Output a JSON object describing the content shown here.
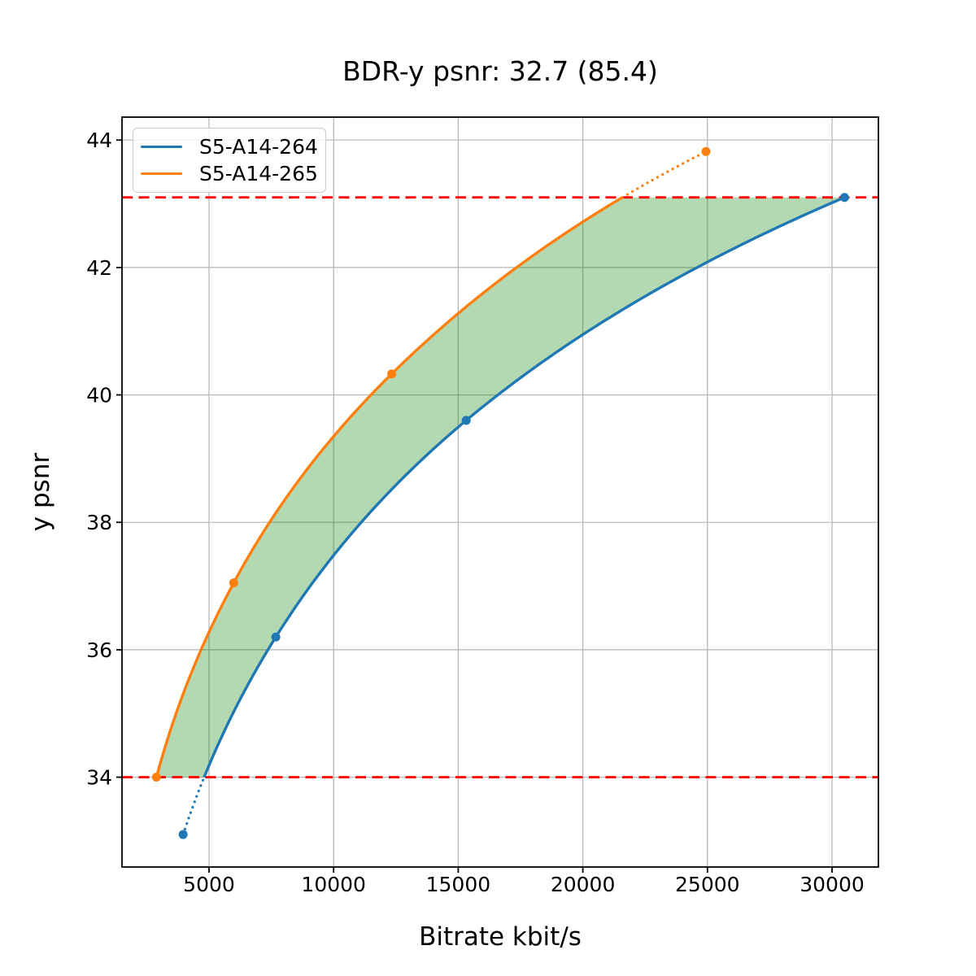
{
  "figure": {
    "background": "#ffffff"
  },
  "chart_data": {
    "type": "line",
    "title": "BDR-y psnr: 32.7 (85.4)",
    "xlabel": "Bitrate kbit/s",
    "ylabel": "y psnr",
    "xlim": [
      1508,
      31860
    ],
    "ylim": [
      32.59,
      44.36
    ],
    "xticks": [
      5000,
      10000,
      15000,
      20000,
      25000,
      30000
    ],
    "yticks": [
      34,
      36,
      38,
      40,
      42,
      44
    ],
    "grid": true,
    "grid_color": "#b4b4b4",
    "legend_position": "upper-left",
    "series": [
      {
        "name": "S5-A14-264",
        "color": "#1f77b4",
        "x": [
          3960,
          7680,
          15320,
          30500
        ],
        "y": [
          33.1,
          36.2,
          39.6,
          43.1
        ],
        "marker": "circle",
        "interpolation": "pchip-log-x"
      },
      {
        "name": "S5-A14-265",
        "color": "#ff7f0e",
        "x": [
          2890,
          5990,
          12330,
          24940
        ],
        "y": [
          34.0,
          37.05,
          40.33,
          43.82
        ],
        "marker": "circle",
        "interpolation": "pchip-log-x"
      }
    ],
    "hlines": [
      {
        "y": 34.0,
        "color": "#ff0000",
        "style": "dashed"
      },
      {
        "y": 43.1,
        "color": "#ff0000",
        "style": "dashed"
      }
    ],
    "shaded_region": {
      "between_series": [
        "S5-A14-265",
        "S5-A14-264"
      ],
      "y_range": [
        34.0,
        43.1
      ],
      "color": "#008000",
      "alpha": 0.3
    }
  }
}
